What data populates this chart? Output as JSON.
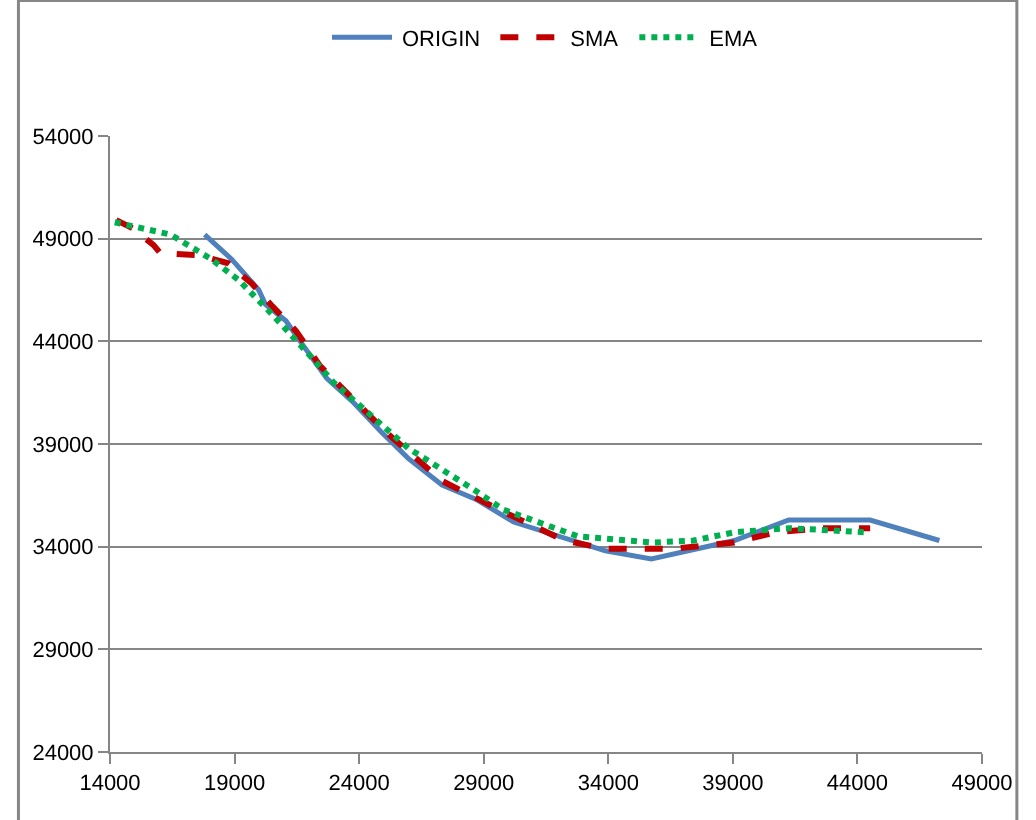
{
  "chart_data": {
    "type": "line",
    "xlim": [
      14000,
      49000
    ],
    "xticks": [
      14000,
      19000,
      24000,
      29000,
      34000,
      39000,
      44000,
      49000
    ],
    "ylim": [
      24000,
      54000
    ],
    "yticks": [
      24000,
      29000,
      34000,
      39000,
      44000,
      49000,
      54000
    ],
    "grid": "y",
    "legend": "top",
    "marker": "none",
    "series": [
      {
        "name": "ORIGIN",
        "color": "#4f81bd",
        "line_style": "solid",
        "x": [
          17800,
          18880,
          19970,
          20240,
          21060,
          21750,
          22700,
          23790,
          24880,
          25970,
          27330,
          28700,
          30200,
          33880,
          35730,
          39060,
          41240,
          44510,
          47290
        ],
        "values": [
          49200,
          48000,
          46500,
          45800,
          45000,
          43800,
          42200,
          41000,
          39600,
          38300,
          37000,
          36300,
          35200,
          33800,
          33400,
          34300,
          35300,
          35300,
          34300
        ]
      },
      {
        "name": "SMA",
        "color": "#c00000",
        "line_style": "dashed",
        "x": [
          14250,
          14920,
          15740,
          16020,
          17520,
          18750,
          19700,
          20520,
          21470,
          22430,
          25150,
          27330,
          29790,
          32240,
          33880,
          36600,
          39060,
          40700,
          42610,
          44510
        ],
        "values": [
          49900,
          49500,
          48700,
          48300,
          48200,
          47800,
          46800,
          45700,
          44500,
          42800,
          39500,
          37200,
          35700,
          34300,
          33900,
          33900,
          34200,
          34700,
          34900,
          34900
        ]
      },
      {
        "name": "EMA",
        "color": "#00b050",
        "line_style": "dotted",
        "x": [
          14190,
          16430,
          18070,
          19150,
          20520,
          21880,
          22970,
          25970,
          28700,
          29790,
          32790,
          35780,
          37420,
          39060,
          41240,
          44370
        ],
        "values": [
          49800,
          49200,
          48000,
          47000,
          45300,
          43500,
          42000,
          38800,
          36700,
          35800,
          34500,
          34200,
          34300,
          34700,
          34900,
          34700
        ]
      }
    ]
  }
}
